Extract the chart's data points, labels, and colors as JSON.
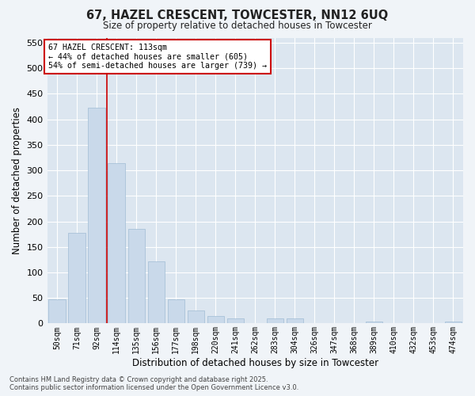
{
  "title": "67, HAZEL CRESCENT, TOWCESTER, NN12 6UQ",
  "subtitle": "Size of property relative to detached houses in Towcester",
  "xlabel": "Distribution of detached houses by size in Towcester",
  "ylabel": "Number of detached properties",
  "bar_color": "#c9d9ea",
  "bar_edge_color": "#a0bcd4",
  "bg_color": "#dce6f0",
  "grid_color": "#ffffff",
  "categories": [
    "50sqm",
    "71sqm",
    "92sqm",
    "114sqm",
    "135sqm",
    "156sqm",
    "177sqm",
    "198sqm",
    "220sqm",
    "241sqm",
    "262sqm",
    "283sqm",
    "304sqm",
    "326sqm",
    "347sqm",
    "368sqm",
    "389sqm",
    "410sqm",
    "432sqm",
    "453sqm",
    "474sqm"
  ],
  "values": [
    47,
    177,
    422,
    314,
    186,
    122,
    47,
    26,
    14,
    10,
    0,
    10,
    10,
    0,
    0,
    0,
    3,
    0,
    0,
    0,
    3
  ],
  "vline_index": 2.5,
  "vline_color": "#cc0000",
  "annotation_text": "67 HAZEL CRESCENT: 113sqm\n← 44% of detached houses are smaller (605)\n54% of semi-detached houses are larger (739) →",
  "ylim": [
    0,
    560
  ],
  "yticks": [
    0,
    50,
    100,
    150,
    200,
    250,
    300,
    350,
    400,
    450,
    500,
    550
  ],
  "fig_bg": "#f0f4f8",
  "footer1": "Contains HM Land Registry data © Crown copyright and database right 2025.",
  "footer2": "Contains public sector information licensed under the Open Government Licence v3.0."
}
